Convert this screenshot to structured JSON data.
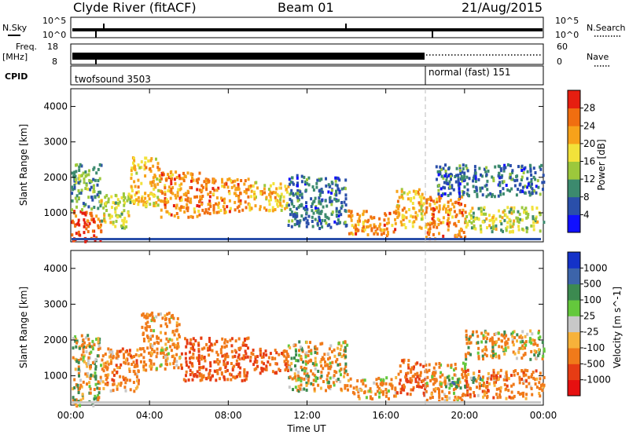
{
  "header": {
    "station": "Clyde River (fitACF)",
    "beam": "Beam 01",
    "date": "21/Aug/2015"
  },
  "strips": {
    "nsky_label": "N.Sky",
    "nsky_ticks": [
      "10^5",
      "10^0"
    ],
    "nsearch_label": "N.Search",
    "nsearch_ticks": [
      "10^5",
      "10^0"
    ],
    "freq_label_line1": "Freq.",
    "freq_label_line2": "[MHz]",
    "freq_ticks": [
      "18",
      "8"
    ],
    "nave_label": "Nave",
    "nave_ticks": [
      "60",
      "0"
    ],
    "cpid_label": "CPID",
    "cpid_modes": [
      {
        "name": "twofsound 3503",
        "start_hour": 0
      },
      {
        "name": "normal (fast) 151",
        "start_hour": 18
      }
    ]
  },
  "panels": {
    "ylabel": "Slant Range [km]",
    "xlabel": "Time UT",
    "x_ticks": [
      "00:00",
      "04:00",
      "08:00",
      "12:00",
      "16:00",
      "20:00",
      "00:00"
    ],
    "y_ticks": [
      "1000",
      "2000",
      "3000",
      "4000"
    ]
  },
  "chart_data": [
    {
      "type": "heatmap",
      "name": "Power",
      "colorbar_label": "Power [dB]",
      "colorbar_ticks": [
        "4",
        "8",
        "12",
        "16",
        "20",
        "24",
        "28"
      ],
      "colorbar_values": [
        4,
        8,
        12,
        16,
        20,
        24,
        28
      ],
      "colors": [
        "#1010ff",
        "#2a4faa",
        "#3c8a6e",
        "#9cc83c",
        "#f2e23a",
        "#f7a21a",
        "#f06e10",
        "#e61e10"
      ],
      "xlim": [
        0,
        24
      ],
      "ylim": [
        180,
        4500
      ],
      "x_unit": "hours UT",
      "y_unit": "km",
      "regions": [
        {
          "t0": 0.0,
          "t1": 1.5,
          "r0": 200,
          "r1": 1100,
          "level": 28
        },
        {
          "t0": 0.0,
          "t1": 1.5,
          "r0": 1100,
          "r1": 2400,
          "level": 12
        },
        {
          "t0": 1.5,
          "t1": 3.0,
          "r0": 600,
          "r1": 1600,
          "level": 16
        },
        {
          "t0": 3.0,
          "t1": 4.5,
          "r0": 1200,
          "r1": 2600,
          "level": 20
        },
        {
          "t0": 4.5,
          "t1": 6.5,
          "r0": 900,
          "r1": 2200,
          "level": 24
        },
        {
          "t0": 6.5,
          "t1": 9.0,
          "r0": 1000,
          "r1": 2000,
          "level": 24
        },
        {
          "t0": 9.0,
          "t1": 11.0,
          "r0": 1100,
          "r1": 1900,
          "level": 20
        },
        {
          "t0": 11.0,
          "t1": 14.0,
          "r0": 600,
          "r1": 2100,
          "level": 8
        },
        {
          "t0": 14.0,
          "t1": 16.5,
          "r0": 400,
          "r1": 1100,
          "level": 24
        },
        {
          "t0": 16.5,
          "t1": 18.0,
          "r0": 600,
          "r1": 1700,
          "level": 20
        },
        {
          "t0": 18.0,
          "t1": 20.0,
          "r0": 300,
          "r1": 1500,
          "level": 24
        },
        {
          "t0": 20.0,
          "t1": 24.0,
          "r0": 500,
          "r1": 1200,
          "level": 16
        },
        {
          "t0": 18.5,
          "t1": 24.0,
          "r0": 1500,
          "r1": 2400,
          "level": 8
        }
      ]
    },
    {
      "type": "heatmap",
      "name": "Velocity",
      "colorbar_label": "Velocity [m s^-1]",
      "colorbar_ticks": [
        "1000",
        "500",
        "100",
        "25",
        "-25",
        "-100",
        "-500",
        "-1000"
      ],
      "colorbar_values": [
        1000,
        500,
        100,
        25,
        -25,
        -100,
        -500,
        -1000
      ],
      "colors": [
        "#1432c8",
        "#3c64aa",
        "#3c8a50",
        "#64c83c",
        "#c8c8c8",
        "#f7b23a",
        "#f07a1a",
        "#e63c14",
        "#e61010"
      ],
      "xlim": [
        0,
        24
      ],
      "ylim": [
        180,
        4500
      ],
      "x_unit": "hours UT",
      "y_unit": "km",
      "regions": [
        {
          "t0": 0.0,
          "t1": 1.5,
          "r0": 200,
          "r1": 900,
          "level": 0
        },
        {
          "t0": 0.0,
          "t1": 1.5,
          "r0": 900,
          "r1": 2200,
          "level": 0
        },
        {
          "t0": 1.5,
          "t1": 3.5,
          "r0": 600,
          "r1": 1800,
          "level": -300
        },
        {
          "t0": 3.5,
          "t1": 5.5,
          "r0": 1200,
          "r1": 2800,
          "level": -200
        },
        {
          "t0": 5.5,
          "t1": 9.0,
          "r0": 900,
          "r1": 2100,
          "level": -500
        },
        {
          "t0": 9.0,
          "t1": 11.0,
          "r0": 1100,
          "r1": 1800,
          "level": -500
        },
        {
          "t0": 11.0,
          "t1": 14.0,
          "r0": 600,
          "r1": 2000,
          "level": -100
        },
        {
          "t0": 14.0,
          "t1": 16.5,
          "r0": 400,
          "r1": 1000,
          "level": -200
        },
        {
          "t0": 16.5,
          "t1": 18.0,
          "r0": 500,
          "r1": 1500,
          "level": -500
        },
        {
          "t0": 18.0,
          "t1": 20.0,
          "r0": 300,
          "r1": 1400,
          "level": -200
        },
        {
          "t0": 19.0,
          "t1": 21.0,
          "r0": 700,
          "r1": 1000,
          "level": 300
        },
        {
          "t0": 20.0,
          "t1": 24.0,
          "r0": 1500,
          "r1": 2300,
          "level": -100
        },
        {
          "t0": 20.0,
          "t1": 24.0,
          "r0": 400,
          "r1": 1200,
          "level": -300
        }
      ]
    }
  ]
}
